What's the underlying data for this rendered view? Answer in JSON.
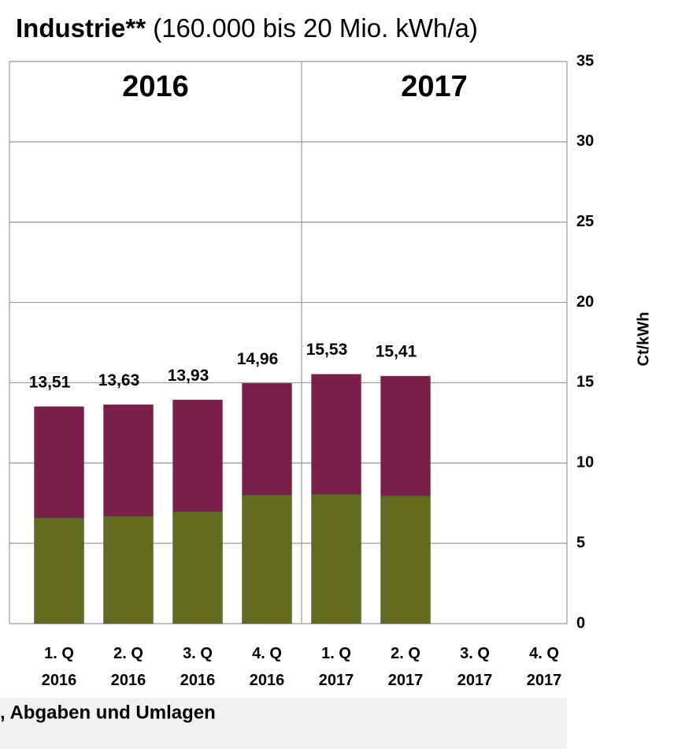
{
  "chart_data": {
    "type": "stacked_bar",
    "title_bold": "Industrie**",
    "title": "(160.000 bis 20 Mio. kWh/a)",
    "groups": [
      "2016",
      "2017"
    ],
    "categories": [
      [
        "1. Q",
        "2016"
      ],
      [
        "2. Q",
        "2016"
      ],
      [
        "3. Q",
        "2016"
      ],
      [
        "4. Q",
        "2016"
      ],
      [
        "1. Q",
        "2017"
      ],
      [
        "2. Q",
        "2017"
      ],
      [
        "3. Q",
        "2017"
      ],
      [
        "4. Q",
        "2017"
      ]
    ],
    "series": [
      {
        "color": "#636b21",
        "values": [
          6.58,
          6.68,
          6.97,
          8.0,
          8.05,
          7.95,
          null,
          null
        ]
      },
      {
        "color": "#7b1e4a",
        "values": [
          6.93,
          6.95,
          6.96,
          6.96,
          7.48,
          7.46,
          null,
          null
        ]
      }
    ],
    "totals": [
      13.51,
      13.63,
      13.93,
      14.96,
      15.53,
      15.41,
      null,
      null
    ],
    "total_labels": [
      "13,51",
      "13,63",
      "13,93",
      "14,96",
      "15,53",
      "15,41",
      null,
      null
    ],
    "ylabel": "Ct/kWh",
    "ylim": [
      0,
      35
    ],
    "yticks": [
      0,
      5,
      10,
      15,
      20,
      25,
      30,
      35
    ],
    "grid": true,
    "footer": ", Abgaben und Umlagen"
  }
}
